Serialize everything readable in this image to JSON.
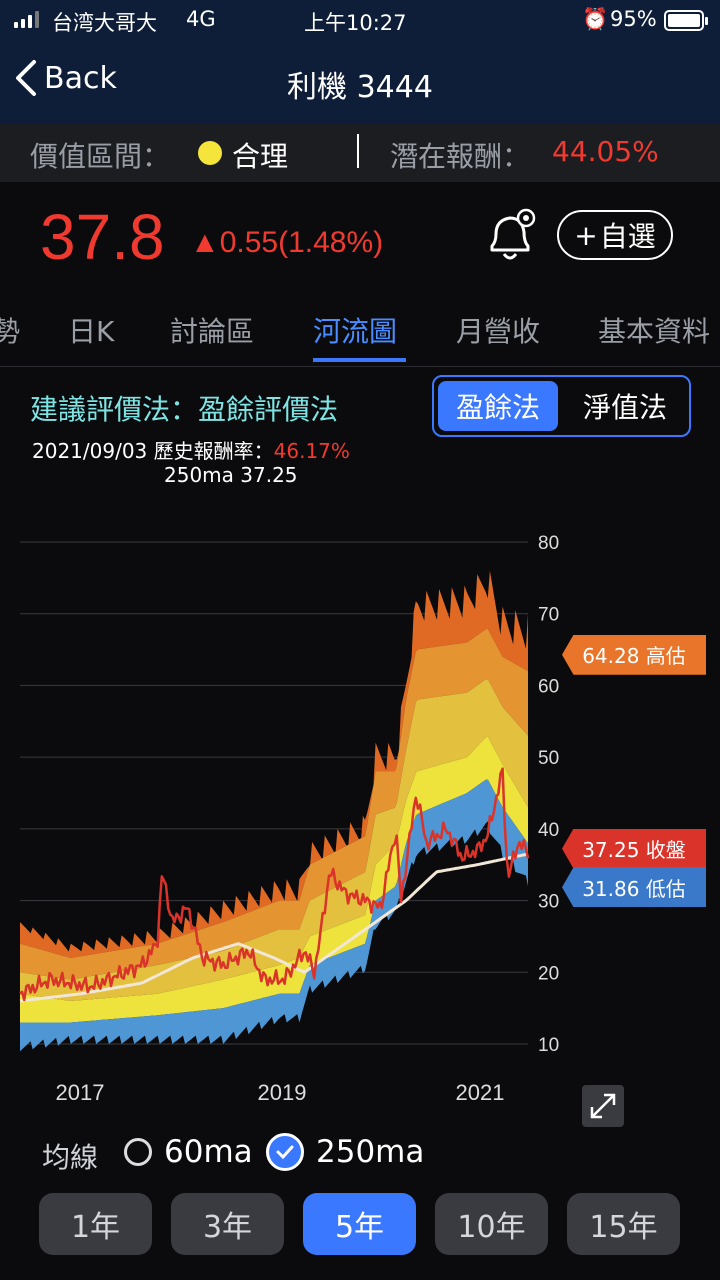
{
  "status": {
    "carrier": "台湾大哥大",
    "network": "4G",
    "time": "上午10:27",
    "battery": "95%"
  },
  "nav": {
    "back_label": "Back",
    "title": "利機 3444"
  },
  "valuation": {
    "range_label": "價值區間：",
    "range_value": "合理",
    "range_dot_color": "#f5e43a",
    "potential_label": "潛在報酬：",
    "potential_value": "44.05%"
  },
  "quote": {
    "price": "37.8",
    "change": "▲0.55(1.48%)",
    "up_color": "#f03a30",
    "watch_label": "自選"
  },
  "tabs": [
    {
      "label": "勢",
      "active": false
    },
    {
      "label": "日K",
      "active": false
    },
    {
      "label": "討論區",
      "active": false
    },
    {
      "label": "河流圖",
      "active": true
    },
    {
      "label": "月營收",
      "active": false
    },
    {
      "label": "基本資料",
      "active": false
    }
  ],
  "method": {
    "label": "建議評價法：盈餘評價法",
    "toggle_on": "盈餘法",
    "toggle_off": "淨值法"
  },
  "info": {
    "date": "2021/09/03",
    "hist_label": "歷史報酬率：",
    "hist_value": "46.17%",
    "ma_line": "250ma 37.25"
  },
  "chart_data": {
    "type": "area",
    "y_ticks": [
      "80",
      "70",
      "60",
      "50",
      "40",
      "30",
      "20",
      "10"
    ],
    "ylim": [
      10,
      80
    ],
    "x_ticks": [
      "2017",
      "2019",
      "2021"
    ],
    "grid": true,
    "series": [
      {
        "name": "",
        "color": "#e06a24",
        "role": "top band"
      },
      {
        "name": "",
        "color": "#e59432",
        "role": "upper band"
      },
      {
        "name": "",
        "color": "#e3c13e",
        "role": "middle band"
      },
      {
        "name": "",
        "color": "#ede33c",
        "role": "lower band"
      },
      {
        "name": "",
        "color": "#4f97d4",
        "role": "bottom band"
      },
      {
        "name": "收盤",
        "color": "#d9332a",
        "role": "close price"
      },
      {
        "name": "250ma",
        "color": "#f2e6d6",
        "role": "moving average"
      }
    ],
    "tags": [
      {
        "label": "64.28 高估",
        "value": 64.28,
        "color": "#e8752a"
      },
      {
        "label": "37.25 收盤",
        "value": 37.25,
        "color": "#d9332a"
      },
      {
        "label": "31.86 低估",
        "value": 31.86,
        "color": "#3a78c9"
      }
    ]
  },
  "ma_options": {
    "label": "均線",
    "options": [
      {
        "label": "60ma",
        "checked": false
      },
      {
        "label": "250ma",
        "checked": true
      }
    ]
  },
  "periods": [
    {
      "label": "1年",
      "active": false
    },
    {
      "label": "3年",
      "active": false
    },
    {
      "label": "5年",
      "active": true
    },
    {
      "label": "10年",
      "active": false
    },
    {
      "label": "15年",
      "active": false
    }
  ]
}
